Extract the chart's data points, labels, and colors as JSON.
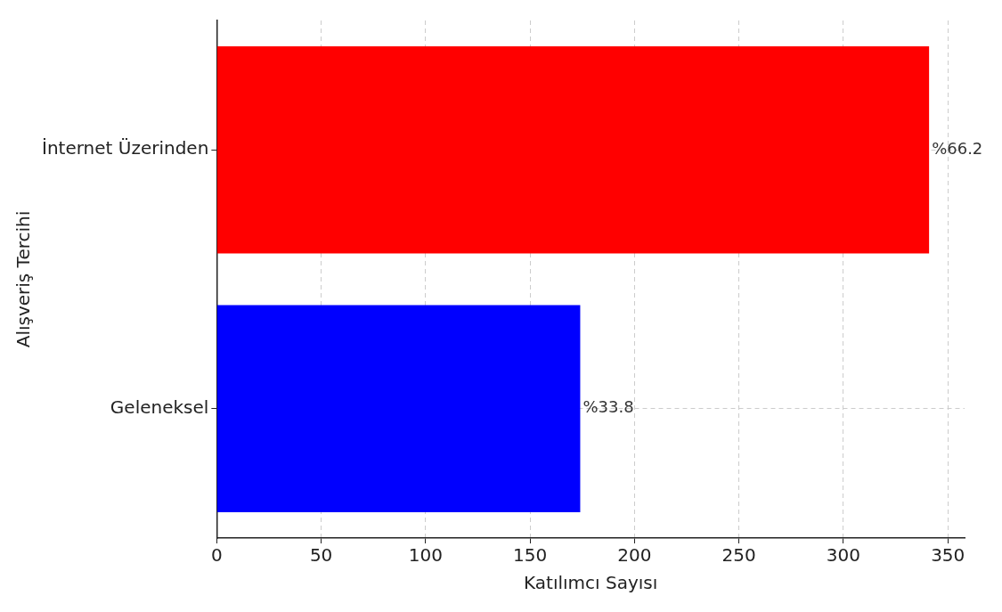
{
  "chart_data": {
    "type": "bar",
    "orientation": "horizontal",
    "xlabel": "Katılımcı Sayısı",
    "ylabel": "Alışveriş Tercihi",
    "categories": [
      "İnternet Üzerinden",
      "Geleneksel"
    ],
    "values": [
      341,
      174
    ],
    "colors": [
      "#ff0000",
      "#0000ff"
    ],
    "annotations": [
      {
        "text": "%66.2",
        "x": 341,
        "y": "İnternet Üzerinden"
      },
      {
        "text": "%33.8",
        "x": 174,
        "y": "Geleneksel"
      }
    ],
    "xlim": [
      0,
      358
    ],
    "xticks": [
      0,
      50,
      100,
      150,
      200,
      250,
      300,
      350
    ],
    "grid": true,
    "legend": false
  }
}
